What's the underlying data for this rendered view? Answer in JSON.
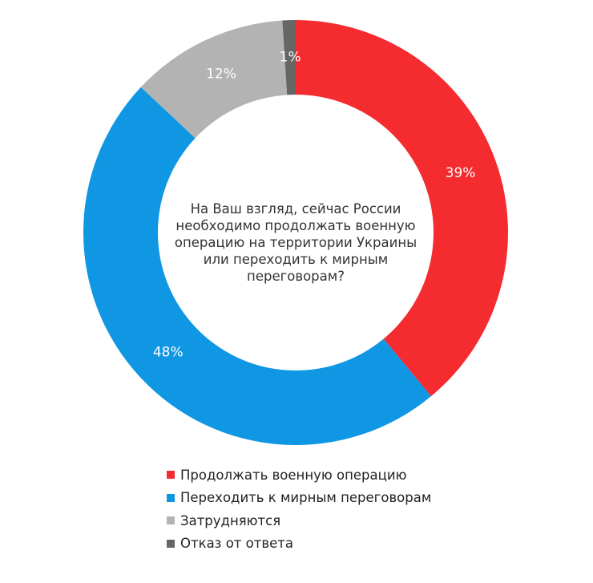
{
  "chart_data": {
    "type": "pie",
    "donut": true,
    "title": "На Ваш взгляд, сейчас России необходимо продолжать военную операцию на территории Украины или переходить к мирным переговорам?",
    "categories": [
      "Продолжать военную операцию",
      "Переходить к мирным переговорам",
      "Затрудняются",
      "Отказ от ответа"
    ],
    "values": [
      39,
      48,
      12,
      1
    ],
    "data_labels": [
      "39%",
      "48%",
      "12%",
      "1%"
    ],
    "colors": [
      "#f42b2f",
      "#0f97e4",
      "#b3b3b3",
      "#666666"
    ],
    "label_colors": [
      "#ffffff",
      "#ffffff",
      "#ffffff",
      "#ffffff"
    ],
    "start": "top",
    "direction": "clockwise",
    "legend_position": "bottom"
  }
}
